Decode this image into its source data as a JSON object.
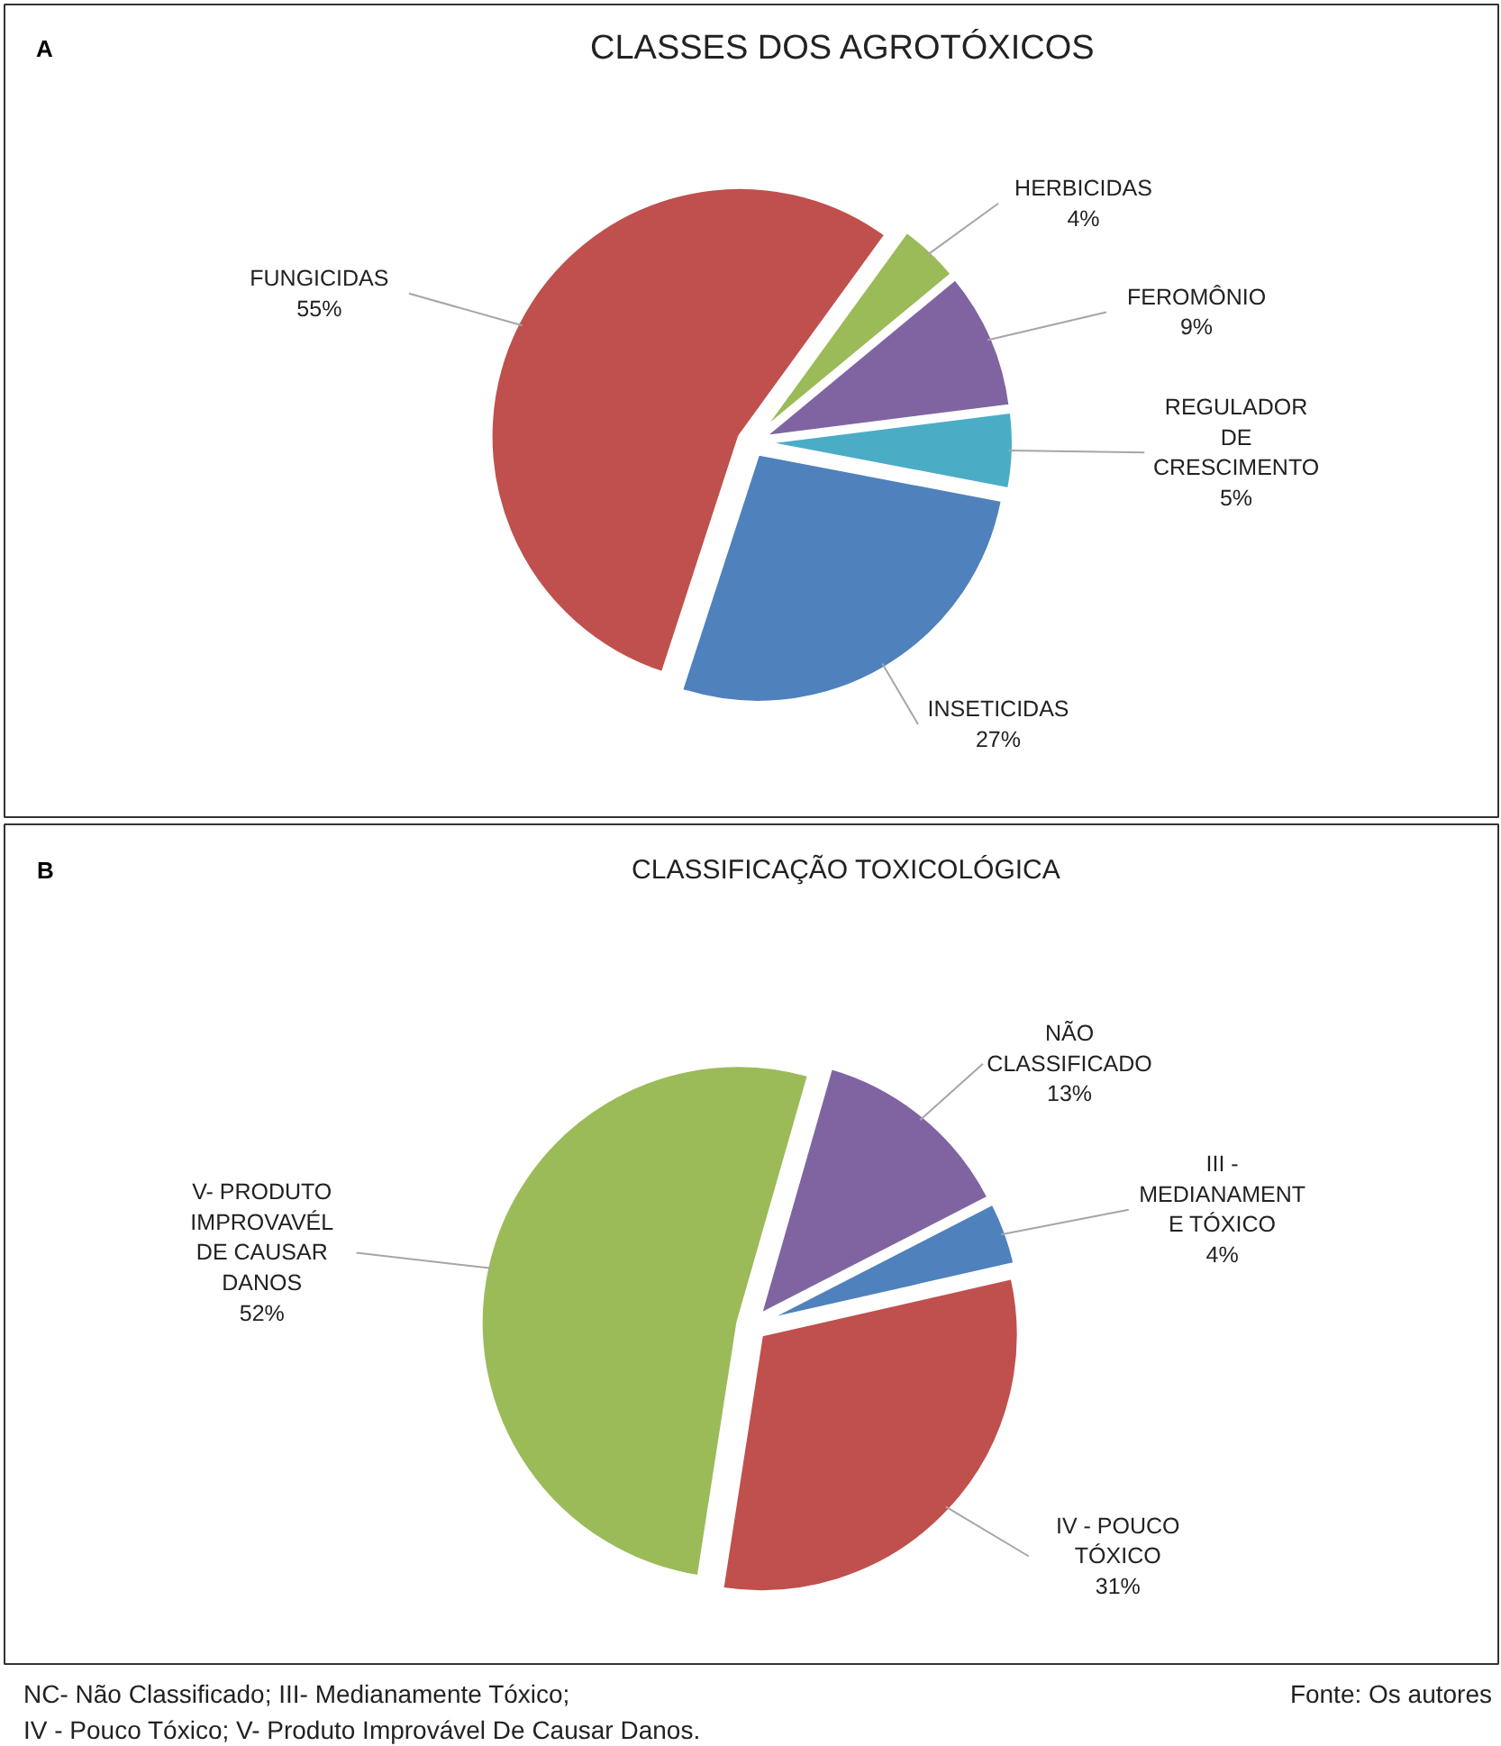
{
  "chart_data": [
    {
      "type": "pie",
      "title": "CLASSES DOS AGROTÓXICOS",
      "annotations": [
        "A"
      ],
      "categories": [
        "HERBICIDAS",
        "FEROMÔNIO",
        "REGULADOR\nDE\nCRESCIMENTO",
        "INSETICIDAS",
        "FUNGICIDAS"
      ],
      "values": [
        4,
        9,
        5,
        27,
        55
      ],
      "value_labels": [
        "4%",
        "9%",
        "5%",
        "27%",
        "55%"
      ],
      "colors": [
        "#9bbb59",
        "#8064a2",
        "#4bacc6",
        "#4f81bd",
        "#c0504d"
      ]
    },
    {
      "type": "pie",
      "title": "CLASSIFICAÇÃO TOXICOLÓGICA",
      "annotations": [
        "B",
        "NC- Não Classificado; III-   Medianamente Tóxico;",
        "IV - Pouco Tóxico; V- Produto Improvável De Causar Danos.",
        "Fonte: Os autores"
      ],
      "categories": [
        "NÃO\nCLASSIFICADO",
        "III -\nMEDIANAMENT\nE TÓXICO",
        "IV - POUCO\nTÓXICO",
        "V- PRODUTO\nIMPROVAVÉL\nDE CAUSAR\nDANOS"
      ],
      "values": [
        13,
        4,
        31,
        52
      ],
      "value_labels": [
        "13%",
        "4%",
        "31%",
        "52%"
      ],
      "colors": [
        "#8064a2",
        "#4f81bd",
        "#c0504d",
        "#9bbb59"
      ]
    }
  ]
}
